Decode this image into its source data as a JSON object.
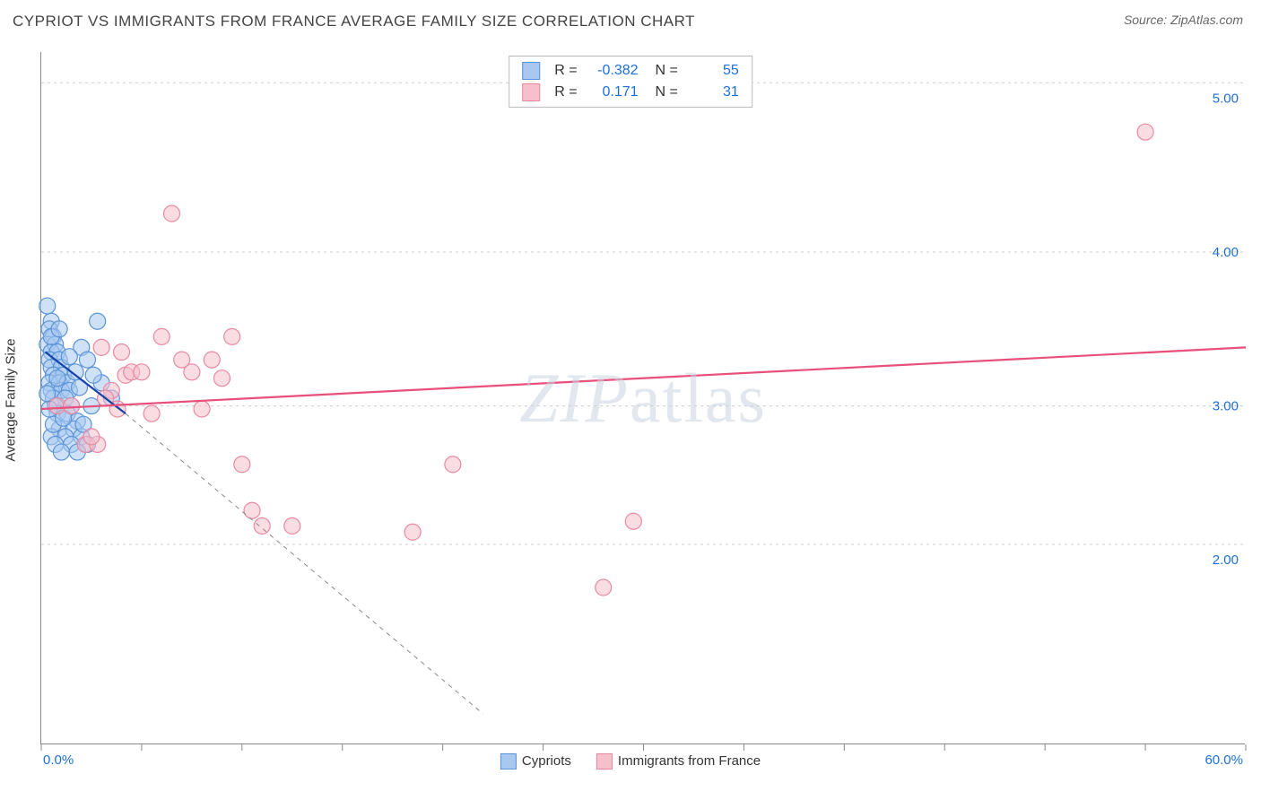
{
  "header": {
    "title": "CYPRIOT VS IMMIGRANTS FROM FRANCE AVERAGE FAMILY SIZE CORRELATION CHART",
    "source": "Source: ZipAtlas.com"
  },
  "chart": {
    "type": "scatter",
    "background_color": "#ffffff",
    "grid_color": "#cccccc",
    "axis_color": "#888888",
    "ylabel": "Average Family Size",
    "label_fontsize": 15,
    "xlim": [
      0,
      60
    ],
    "ylim": [
      0.8,
      5.3
    ],
    "x_ticks": [
      0,
      5,
      10,
      15,
      20,
      25,
      30,
      35,
      40,
      45,
      50,
      55,
      60
    ],
    "y_gridlines": [
      2.1,
      3.0,
      4.0,
      5.1
    ],
    "y_tick_labels_right": [
      {
        "v": 2.0,
        "t": "2.00"
      },
      {
        "v": 3.0,
        "t": "3.00"
      },
      {
        "v": 4.0,
        "t": "4.00"
      },
      {
        "v": 5.0,
        "t": "5.00"
      }
    ],
    "x_min_label": "0.0%",
    "x_max_label": "60.0%",
    "marker_radius": 9,
    "marker_stroke_width": 1.2,
    "watermark": "ZIPatlas",
    "series": [
      {
        "name": "Cypriots",
        "fill": "#a8c8f0",
        "stroke": "#5a93d6",
        "fill_opacity": 0.55,
        "trend": {
          "x1": 0.2,
          "y1": 3.35,
          "x2": 4.2,
          "y2": 2.95,
          "color": "#1544a8",
          "width": 2.2,
          "extrap_x2": 22,
          "extrap_y2": 1.0,
          "extrap_color": "#888",
          "extrap_dash": "5,5"
        },
        "points": [
          [
            0.3,
            3.65
          ],
          [
            0.5,
            3.55
          ],
          [
            0.4,
            3.5
          ],
          [
            0.6,
            3.45
          ],
          [
            0.3,
            3.4
          ],
          [
            0.7,
            3.4
          ],
          [
            0.5,
            3.35
          ],
          [
            0.8,
            3.35
          ],
          [
            0.4,
            3.3
          ],
          [
            0.9,
            3.3
          ],
          [
            0.5,
            3.25
          ],
          [
            1.0,
            3.25
          ],
          [
            0.6,
            3.2
          ],
          [
            1.1,
            3.2
          ],
          [
            0.4,
            3.15
          ],
          [
            0.9,
            3.15
          ],
          [
            1.3,
            3.15
          ],
          [
            0.5,
            3.1
          ],
          [
            1.0,
            3.1
          ],
          [
            1.4,
            3.1
          ],
          [
            0.6,
            3.05
          ],
          [
            1.2,
            3.05
          ],
          [
            0.7,
            3.0
          ],
          [
            1.5,
            3.0
          ],
          [
            0.8,
            2.95
          ],
          [
            1.3,
            2.95
          ],
          [
            2.0,
            3.38
          ],
          [
            2.3,
            3.3
          ],
          [
            2.8,
            3.55
          ],
          [
            2.5,
            3.0
          ],
          [
            3.0,
            3.15
          ],
          [
            3.5,
            3.05
          ],
          [
            1.8,
            2.9
          ],
          [
            0.9,
            2.85
          ],
          [
            1.6,
            2.85
          ],
          [
            0.5,
            2.8
          ],
          [
            1.2,
            2.8
          ],
          [
            2.0,
            2.8
          ],
          [
            0.7,
            2.75
          ],
          [
            1.5,
            2.75
          ],
          [
            2.3,
            2.75
          ],
          [
            1.0,
            2.7
          ],
          [
            1.8,
            2.7
          ],
          [
            0.6,
            2.88
          ],
          [
            1.1,
            2.92
          ],
          [
            0.4,
            2.98
          ],
          [
            0.8,
            3.18
          ],
          [
            1.7,
            3.22
          ],
          [
            0.3,
            3.08
          ],
          [
            1.9,
            3.12
          ],
          [
            2.1,
            2.88
          ],
          [
            2.6,
            3.2
          ],
          [
            1.4,
            3.32
          ],
          [
            0.5,
            3.45
          ],
          [
            0.9,
            3.5
          ]
        ]
      },
      {
        "name": "Immigrants from France",
        "fill": "#f5c0cc",
        "stroke": "#e889a2",
        "fill_opacity": 0.55,
        "trend": {
          "x1": 0,
          "y1": 2.98,
          "x2": 60,
          "y2": 3.38,
          "color": "#e84f7a",
          "width": 2.2
        },
        "points": [
          [
            0.8,
            3.0
          ],
          [
            1.5,
            3.0
          ],
          [
            2.2,
            2.75
          ],
          [
            2.8,
            2.75
          ],
          [
            3.0,
            3.38
          ],
          [
            3.5,
            3.1
          ],
          [
            3.8,
            2.98
          ],
          [
            4.2,
            3.2
          ],
          [
            4.5,
            3.22
          ],
          [
            5.0,
            3.22
          ],
          [
            5.5,
            2.95
          ],
          [
            6.0,
            3.45
          ],
          [
            6.5,
            4.25
          ],
          [
            7.0,
            3.3
          ],
          [
            7.5,
            3.22
          ],
          [
            8.5,
            3.3
          ],
          [
            8.0,
            2.98
          ],
          [
            9.0,
            3.18
          ],
          [
            9.5,
            3.45
          ],
          [
            10.0,
            2.62
          ],
          [
            10.5,
            2.32
          ],
          [
            11.0,
            2.22
          ],
          [
            12.5,
            2.22
          ],
          [
            18.5,
            2.18
          ],
          [
            20.5,
            2.62
          ],
          [
            28.0,
            1.82
          ],
          [
            29.5,
            2.25
          ],
          [
            55.0,
            4.78
          ],
          [
            4.0,
            3.35
          ],
          [
            2.5,
            2.8
          ],
          [
            3.2,
            3.05
          ]
        ]
      }
    ],
    "top_legend": [
      {
        "series_idx": 0,
        "r": "-0.382",
        "n": "55"
      },
      {
        "series_idx": 1,
        "r": "0.171",
        "n": "31"
      }
    ],
    "bottom_legend": [
      {
        "series_idx": 0,
        "label": "Cypriots"
      },
      {
        "series_idx": 1,
        "label": "Immigrants from France"
      }
    ]
  }
}
